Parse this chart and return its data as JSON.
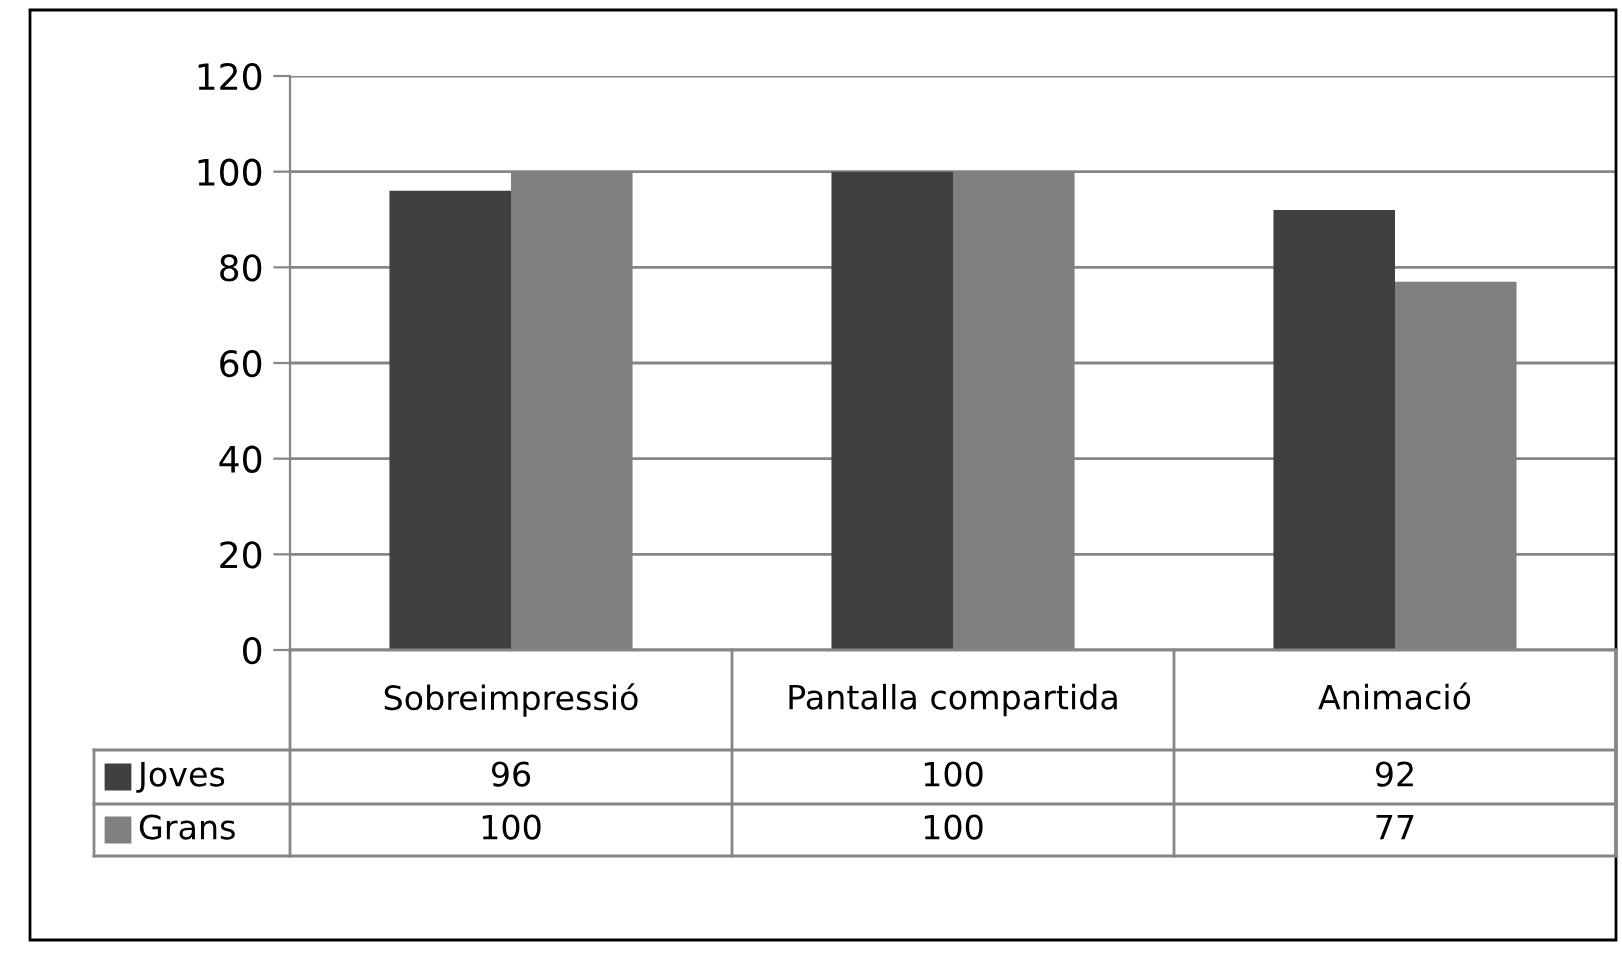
{
  "chart_data": {
    "type": "bar",
    "categories": [
      "Sobreimpressió",
      "Pantalla compartida",
      "Animació"
    ],
    "series": [
      {
        "name": "Joves",
        "color": "#404040",
        "values": [
          96,
          100,
          92
        ]
      },
      {
        "name": "Grans",
        "color": "#808080",
        "values": [
          100,
          100,
          77
        ]
      }
    ],
    "ylim": [
      0,
      120
    ],
    "yticks": [
      0,
      20,
      40,
      60,
      80,
      100,
      120
    ],
    "grid": "y",
    "legend": "bottom",
    "data_labels": true
  }
}
